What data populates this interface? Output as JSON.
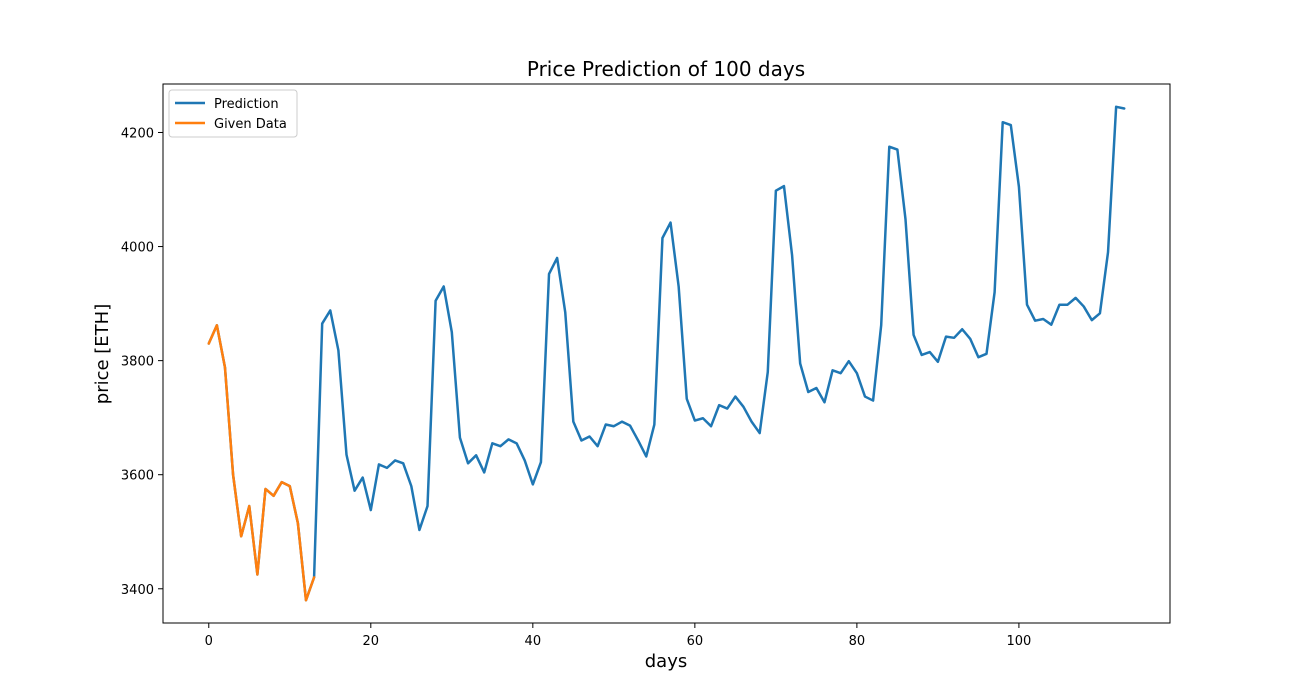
{
  "chart_data": {
    "type": "line",
    "title": "Price Prediction of 100 days",
    "xlabel": "days",
    "ylabel": "price [ETH]",
    "xlim": [
      -5.65,
      118.65
    ],
    "ylim": [
      3340,
      4285
    ],
    "xticks": [
      0,
      20,
      40,
      60,
      80,
      100
    ],
    "yticks": [
      3400,
      3600,
      3800,
      4000,
      4200
    ],
    "grid": false,
    "legend_position": "top-left",
    "colors": {
      "Prediction": "#1f77b4",
      "Given Data": "#ff7f0e"
    },
    "series": [
      {
        "name": "Prediction",
        "x": [
          0,
          1,
          2,
          3,
          4,
          5,
          6,
          7,
          8,
          9,
          10,
          11,
          12,
          13,
          14,
          15,
          16,
          17,
          18,
          19,
          20,
          21,
          22,
          23,
          24,
          25,
          26,
          27,
          28,
          29,
          30,
          31,
          32,
          33,
          34,
          35,
          36,
          37,
          38,
          39,
          40,
          41,
          42,
          43,
          44,
          45,
          46,
          47,
          48,
          49,
          50,
          51,
          52,
          53,
          54,
          55,
          56,
          57,
          58,
          59,
          60,
          61,
          62,
          63,
          64,
          65,
          66,
          67,
          68,
          69,
          70,
          71,
          72,
          73,
          74,
          75,
          76,
          77,
          78,
          79,
          80,
          81,
          82,
          83,
          84,
          85,
          86,
          87,
          88,
          89,
          90,
          91,
          92,
          93,
          94,
          95,
          96,
          97,
          98,
          99,
          100,
          101,
          102,
          103,
          104,
          105,
          106,
          107,
          108,
          109,
          110,
          111,
          112,
          113
        ],
        "y": [
          3830,
          3862,
          3788,
          3600,
          3492,
          3545,
          3425,
          3575,
          3563,
          3587,
          3580,
          3515,
          3380,
          3420,
          3865,
          3888,
          3818,
          3635,
          3572,
          3595,
          3538,
          3618,
          3612,
          3625,
          3620,
          3580,
          3503,
          3545,
          3905,
          3930,
          3850,
          3665,
          3620,
          3634,
          3604,
          3655,
          3650,
          3662,
          3655,
          3625,
          3583,
          3622,
          3952,
          3980,
          3885,
          3693,
          3660,
          3667,
          3650,
          3688,
          3685,
          3693,
          3686,
          3660,
          3632,
          3688,
          4015,
          4042,
          3930,
          3733,
          3695,
          3699,
          3685,
          3722,
          3716,
          3737,
          3719,
          3693,
          3673,
          3780,
          4098,
          4106,
          3985,
          3795,
          3745,
          3752,
          3727,
          3783,
          3778,
          3799,
          3778,
          3737,
          3730,
          3862,
          4175,
          4170,
          4048,
          3845,
          3810,
          3815,
          3798,
          3842,
          3840,
          3855,
          3838,
          3806,
          3812,
          3920,
          4218,
          4213,
          4105,
          3898,
          3870,
          3873,
          3863,
          3898,
          3898,
          3910,
          3895,
          3871,
          3883,
          3990,
          4245,
          4242
        ]
      },
      {
        "name": "Given Data",
        "x": [
          0,
          1,
          2,
          3,
          4,
          5,
          6,
          7,
          8,
          9,
          10,
          11,
          12,
          13
        ],
        "y": [
          3830,
          3862,
          3788,
          3600,
          3492,
          3545,
          3425,
          3575,
          3563,
          3587,
          3580,
          3515,
          3380,
          3420
        ]
      }
    ]
  }
}
